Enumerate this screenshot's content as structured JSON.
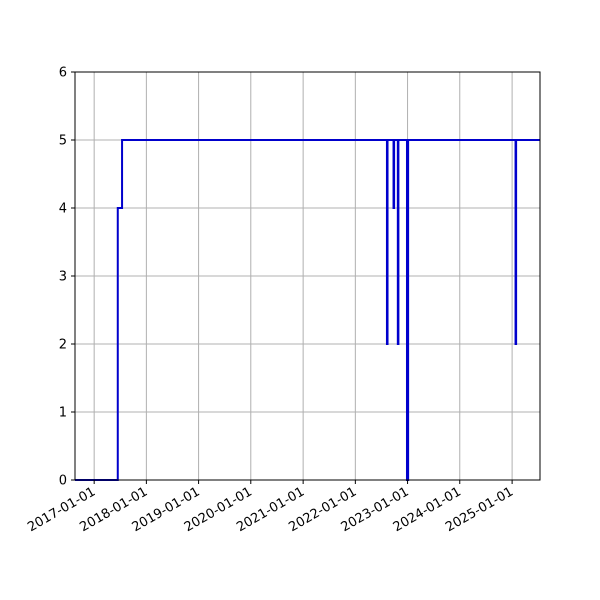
{
  "chart_data": {
    "type": "line",
    "title": "",
    "xlabel": "",
    "ylabel": "",
    "xlim": [
      "2016-08-20",
      "2025-07-15"
    ],
    "ylim": [
      0,
      6
    ],
    "grid": true,
    "x_ticks": [
      "2017-01-01",
      "2018-01-01",
      "2019-01-01",
      "2020-01-01",
      "2021-01-01",
      "2022-01-01",
      "2023-01-01",
      "2024-01-01",
      "2025-01-01"
    ],
    "y_ticks": [
      "0",
      "1",
      "2",
      "3",
      "4",
      "5",
      "6"
    ],
    "series": [
      {
        "color": "#0000cc",
        "step": true,
        "points": [
          {
            "x": "2016-08-20",
            "y": 0
          },
          {
            "x": "2017-06-15",
            "y": 4
          },
          {
            "x": "2017-07-15",
            "y": 5
          },
          {
            "x": "2022-08-10",
            "y": 2
          },
          {
            "x": "2022-08-14",
            "y": 5
          },
          {
            "x": "2022-09-25",
            "y": 4
          },
          {
            "x": "2022-09-29",
            "y": 5
          },
          {
            "x": "2022-10-25",
            "y": 2
          },
          {
            "x": "2022-10-29",
            "y": 5
          },
          {
            "x": "2022-12-28",
            "y": 0
          },
          {
            "x": "2023-01-05",
            "y": 5
          },
          {
            "x": "2025-01-25",
            "y": 2
          },
          {
            "x": "2025-01-29",
            "y": 5
          },
          {
            "x": "2025-07-15",
            "y": 5
          }
        ]
      }
    ]
  }
}
